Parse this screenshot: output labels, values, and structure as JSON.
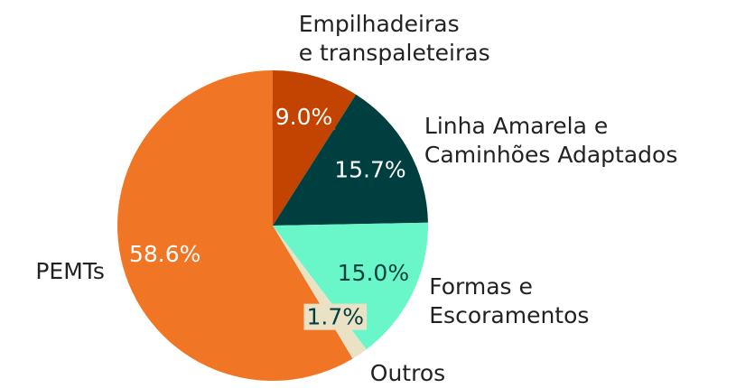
{
  "chart_data": {
    "type": "pie",
    "categories": [
      "Empilhadeiras\ne transpaleteiras",
      "Linha Amarela e\nCaminhões Adaptados",
      "Formas e\nEscoramentos",
      "Outros",
      "PEMTs"
    ],
    "values": [
      9.0,
      15.7,
      15.0,
      1.7,
      58.6
    ],
    "value_labels": [
      "9.0%",
      "15.7%",
      "15.0%",
      "1.7%",
      "58.6%"
    ],
    "colors": [
      "#c34300",
      "#003f3f",
      "#69f7c9",
      "#ebe2c6",
      "#f07524"
    ]
  }
}
